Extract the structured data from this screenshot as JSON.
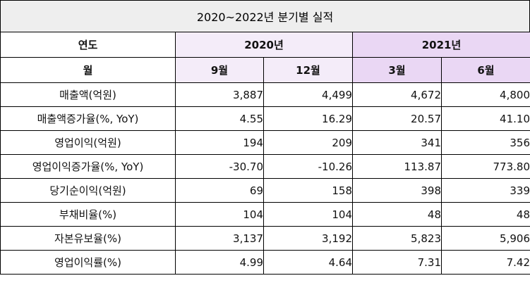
{
  "title": "2020~2022년 분기별 실적",
  "header": {
    "year_label": "연도",
    "month_label": "월",
    "years": [
      "2020년",
      "2021년"
    ],
    "months": [
      "9월",
      "12월",
      "3월",
      "6월"
    ]
  },
  "rows": [
    {
      "label": "매출액(억원)",
      "values": [
        "3,887",
        "4,499",
        "4,672",
        "4,800"
      ],
      "colors": [
        "",
        "",
        "",
        ""
      ]
    },
    {
      "label": "매출액증가율(%, YoY)",
      "values": [
        "4.55",
        "16.29",
        "20.57",
        "41.10"
      ],
      "colors": [
        "red",
        "red",
        "red",
        "red"
      ]
    },
    {
      "label": "영업이익(억원)",
      "values": [
        "194",
        "209",
        "341",
        "356"
      ],
      "colors": [
        "",
        "",
        "",
        ""
      ]
    },
    {
      "label": "영업이익증가율(%, YoY)",
      "values": [
        "-30.70",
        "-10.26",
        "113.87",
        "773.80"
      ],
      "colors": [
        "blue",
        "blue",
        "red",
        "red"
      ]
    },
    {
      "label": "당기순이익(억원)",
      "values": [
        "69",
        "158",
        "398",
        "339"
      ],
      "colors": [
        "",
        "",
        "",
        ""
      ]
    },
    {
      "label": "부채비율(%)",
      "values": [
        "104",
        "104",
        "48",
        "48"
      ],
      "colors": [
        "",
        "",
        "",
        ""
      ]
    },
    {
      "label": "자본유보율(%)",
      "values": [
        "3,137",
        "3,192",
        "5,823",
        "5,906"
      ],
      "colors": [
        "",
        "",
        "",
        ""
      ]
    },
    {
      "label": "영업이익률(%)",
      "values": [
        "4.99",
        "4.64",
        "7.31",
        "7.42"
      ],
      "colors": [
        "red",
        "red",
        "red",
        "red"
      ]
    }
  ],
  "colors": {
    "red": "#e0343a",
    "blue": "#4f7fc2",
    "year_2020_bg": "#f4ecf9",
    "year_2021_bg": "#ead7f4",
    "title_bg": "#eeeeee"
  }
}
